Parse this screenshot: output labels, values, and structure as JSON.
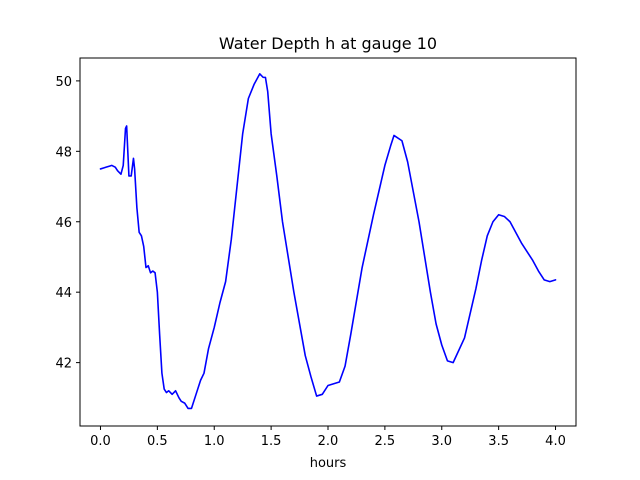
{
  "chart_data": {
    "type": "line",
    "title": "Water Depth h at gauge 10",
    "xlabel": "hours",
    "ylabel": "",
    "xlim": [
      -0.18,
      4.18
    ],
    "ylim": [
      40.2,
      50.65
    ],
    "xticks": [
      0.0,
      0.5,
      1.0,
      1.5,
      2.0,
      2.5,
      3.0,
      3.5,
      4.0
    ],
    "xtick_labels": [
      "0.0",
      "0.5",
      "1.0",
      "1.5",
      "2.0",
      "2.5",
      "3.0",
      "3.5",
      "4.0"
    ],
    "yticks": [
      42,
      44,
      46,
      48,
      50
    ],
    "ytick_labels": [
      "42",
      "44",
      "46",
      "48",
      "50"
    ],
    "grid": false,
    "legend": "none",
    "series": [
      {
        "color": "#0000ff",
        "x": [
          0.0,
          0.03,
          0.05,
          0.08,
          0.1,
          0.13,
          0.15,
          0.18,
          0.2,
          0.22,
          0.23,
          0.25,
          0.27,
          0.29,
          0.3,
          0.32,
          0.34,
          0.36,
          0.38,
          0.4,
          0.42,
          0.44,
          0.46,
          0.48,
          0.5,
          0.52,
          0.54,
          0.56,
          0.58,
          0.6,
          0.63,
          0.66,
          0.69,
          0.71,
          0.74,
          0.77,
          0.8,
          0.84,
          0.88,
          0.91,
          0.95,
          1.0,
          1.05,
          1.1,
          1.15,
          1.2,
          1.25,
          1.3,
          1.35,
          1.4,
          1.43,
          1.45,
          1.47,
          1.5,
          1.55,
          1.6,
          1.7,
          1.8,
          1.85,
          1.9,
          1.95,
          2.0,
          2.05,
          2.1,
          2.15,
          2.2,
          2.3,
          2.4,
          2.5,
          2.55,
          2.58,
          2.65,
          2.7,
          2.8,
          2.9,
          2.95,
          3.0,
          3.05,
          3.1,
          3.2,
          3.3,
          3.35,
          3.4,
          3.45,
          3.5,
          3.55,
          3.6,
          3.7,
          3.8,
          3.85,
          3.9,
          3.95,
          4.0
        ],
        "y": [
          47.5,
          47.53,
          47.55,
          47.58,
          47.6,
          47.55,
          47.45,
          47.35,
          47.6,
          48.65,
          48.72,
          47.3,
          47.3,
          47.8,
          47.5,
          46.4,
          45.7,
          45.6,
          45.3,
          44.7,
          44.75,
          44.55,
          44.6,
          44.55,
          44.0,
          42.8,
          41.7,
          41.25,
          41.15,
          41.2,
          41.1,
          41.2,
          41.0,
          40.9,
          40.85,
          40.7,
          40.7,
          41.1,
          41.5,
          41.7,
          42.4,
          43.0,
          43.7,
          44.3,
          45.5,
          47.0,
          48.5,
          49.5,
          49.9,
          50.2,
          50.1,
          50.1,
          49.7,
          48.5,
          47.3,
          46.0,
          44.0,
          42.2,
          41.6,
          41.05,
          41.1,
          41.35,
          41.4,
          41.45,
          41.9,
          42.8,
          44.7,
          46.2,
          47.6,
          48.15,
          48.45,
          48.3,
          47.7,
          46.0,
          44.0,
          43.1,
          42.5,
          42.05,
          42.0,
          42.7,
          44.1,
          44.9,
          45.6,
          46.0,
          46.2,
          46.15,
          46.0,
          45.4,
          44.9,
          44.6,
          44.35,
          44.3,
          44.35
        ]
      }
    ]
  }
}
